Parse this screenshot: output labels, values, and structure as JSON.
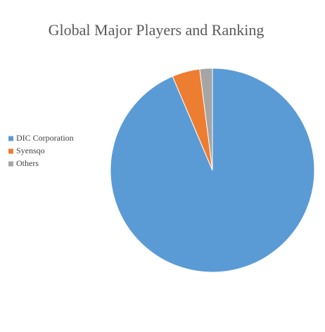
{
  "chart_data": {
    "type": "pie",
    "title": "Global Major Players and Ranking",
    "categories": [
      "DIC Corporation",
      "Syensqo",
      "Others"
    ],
    "values": [
      93.6,
      4.4,
      2.0
    ],
    "colors": [
      "#5b9bd5",
      "#ed7d31",
      "#a5a5a5"
    ],
    "legend": "left"
  }
}
